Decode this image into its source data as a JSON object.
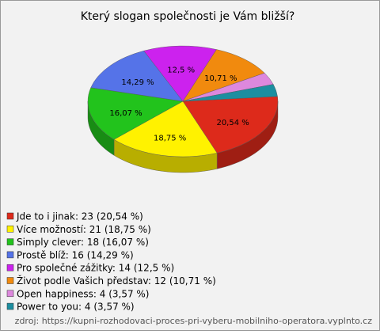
{
  "chart_data": {
    "type": "pie",
    "title": "Který slogan společnosti je Vám bližší?",
    "categories": [
      "Jde to i jinak: 23 (20,54 %)",
      "Více možností: 21 (18,75 %)",
      "Simply clever: 18 (16,07 %)",
      "Prostě blíž: 16 (14,29 %)",
      "Pro společné zážitky: 14 (12,5 %)",
      "Život podle Vašich představ: 12 (10,71 %)",
      "Open happiness: 4 (3,57 %)",
      "Power to you: 4 (3,57 %)"
    ],
    "values": [
      20.54,
      18.75,
      16.07,
      14.29,
      12.5,
      10.71,
      3.57,
      3.57
    ],
    "value_labels": [
      "20,54 %",
      "18,75 %",
      "16,07 %",
      "14,29 %",
      "12,5 %",
      "10,71 %",
      null,
      null
    ],
    "colors": [
      "#dd2a1b",
      "#fff200",
      "#22c31c",
      "#5573e8",
      "#cc22ee",
      "#f18a0e",
      "#dd88dd",
      "#1c8ea0"
    ],
    "source": "zdroj: https://kupni-rozhodovaci-proces-pri-vyberu-mobilniho-operatora.vyplnto.cz"
  }
}
